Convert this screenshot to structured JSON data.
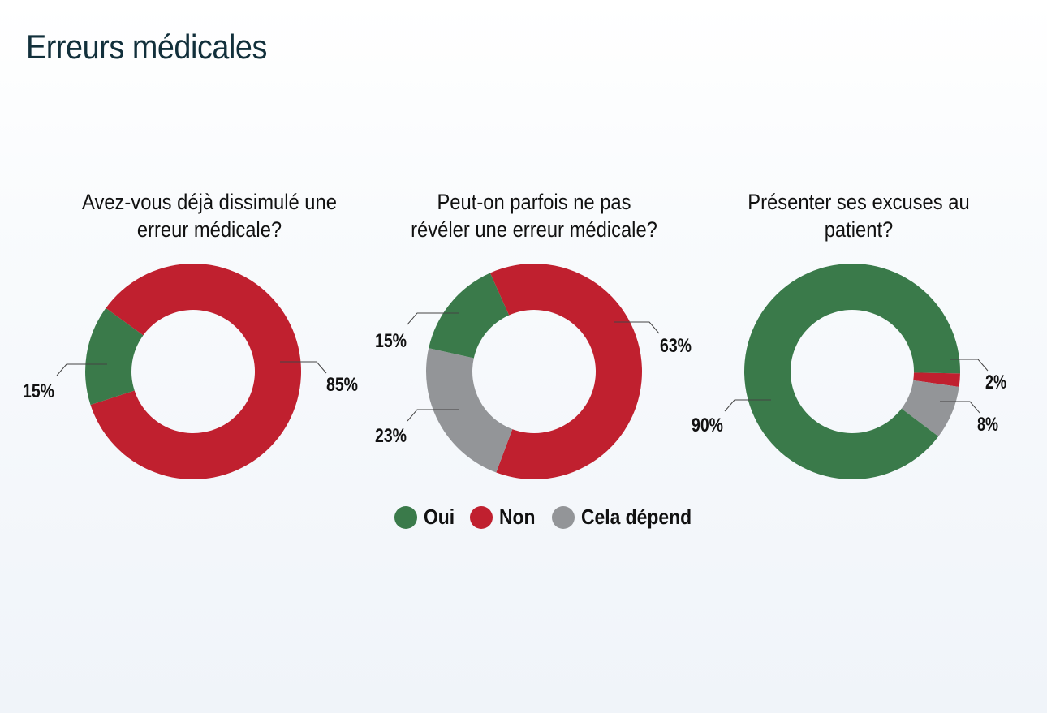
{
  "title": "Erreurs médicales",
  "colors": {
    "Oui": "#3a7a4a",
    "Non": "#c0202f",
    "Cela dépend": "#939598"
  },
  "legend": [
    "Oui",
    "Non",
    "Cela dépend"
  ],
  "chart_data": [
    {
      "type": "pie",
      "variant": "donut",
      "title": "Avez-vous déjà dissimulé une erreur médicale?",
      "categories": [
        "Oui",
        "Non"
      ],
      "values": [
        15,
        85
      ],
      "labels": [
        "15%",
        "85%"
      ]
    },
    {
      "type": "pie",
      "variant": "donut",
      "title": "Peut-on parfois ne pas révéler une erreur médicale?",
      "categories": [
        "Oui",
        "Non",
        "Cela dépend"
      ],
      "values": [
        15,
        63,
        23
      ],
      "labels": [
        "15%",
        "63%",
        "23%"
      ]
    },
    {
      "type": "pie",
      "variant": "donut",
      "title": "Présenter ses excuses au patient?",
      "categories": [
        "Oui",
        "Non",
        "Cela dépend"
      ],
      "values": [
        90,
        2,
        8
      ],
      "labels": [
        "90%",
        "2%",
        "8%"
      ]
    }
  ]
}
